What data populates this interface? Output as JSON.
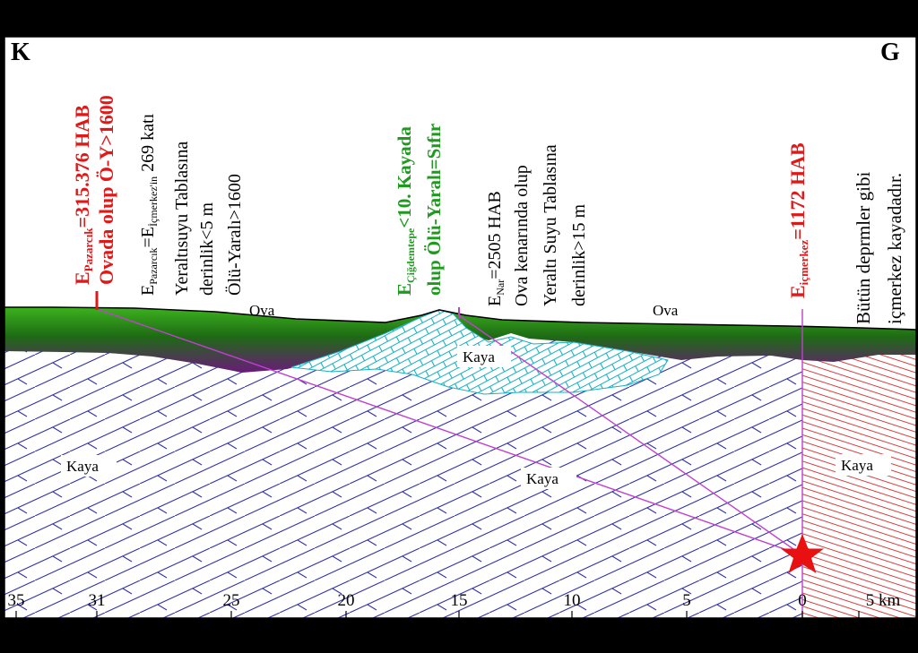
{
  "corners": {
    "north": "K",
    "south": "G"
  },
  "annotations": {
    "pazarcik_red": {
      "line1_main": "E",
      "line1_sub": "Pazarcık",
      "line1_rest": "=315.376 HAB",
      "line2": "Ovada olup Ö-Y>1600"
    },
    "pazarcik_black": {
      "line1_a": "E",
      "line1_sub1": "Pazarcık",
      "line1_b": "=E",
      "line1_sub2": "İçmerkez'in",
      "line1_c": " 269 katı",
      "line2": "Yeraltısuyu Tablasına",
      "line3": "derinlik<5 m",
      "line4": "Ölü-Yaralı>1600"
    },
    "cigdemtepe_green": {
      "line1_main": "E",
      "line1_sub": "Çiğdemtepe",
      "line1_rest": "<10. Kayada",
      "line2": "olup Ölü-Yaralı=Sıfır"
    },
    "nar_black": {
      "line1_main": "E",
      "line1_sub": "Nar",
      "line1_rest": "=2505 HAB",
      "line2": "Ova kenarında olup",
      "line3": "Yeraltı Suyu Tablasına",
      "line4": "derinlik>15 m"
    },
    "icmerkez_red": {
      "main": "E",
      "sub": "içmerkez",
      "rest": "=1172 HAB"
    },
    "note_black": {
      "line1": "Bütün deprmler gibi",
      "line2": "içmerkez kayadadır."
    }
  },
  "labels": {
    "ova_left": "Ova",
    "ova_right": "Ova",
    "kaya_hill": "Kaya",
    "kaya_left": "Kaya",
    "kaya_center": "Kaya",
    "kaya_right": "Kaya"
  },
  "axis": {
    "unit": "km",
    "ticks": [
      "35",
      "31",
      "25",
      "20",
      "15",
      "10",
      "5",
      "0",
      "5 km"
    ]
  },
  "colors": {
    "ova_green": "#2e9e1a",
    "ova_purple": "#6a1a7a",
    "rock_blue": "#2a2aa0",
    "rock_red": "#d02020",
    "hill_cyan": "#1fb8c8",
    "ray_magenta": "#c040d0",
    "red_text": "#e01818",
    "green_text": "#1f9a1f"
  }
}
